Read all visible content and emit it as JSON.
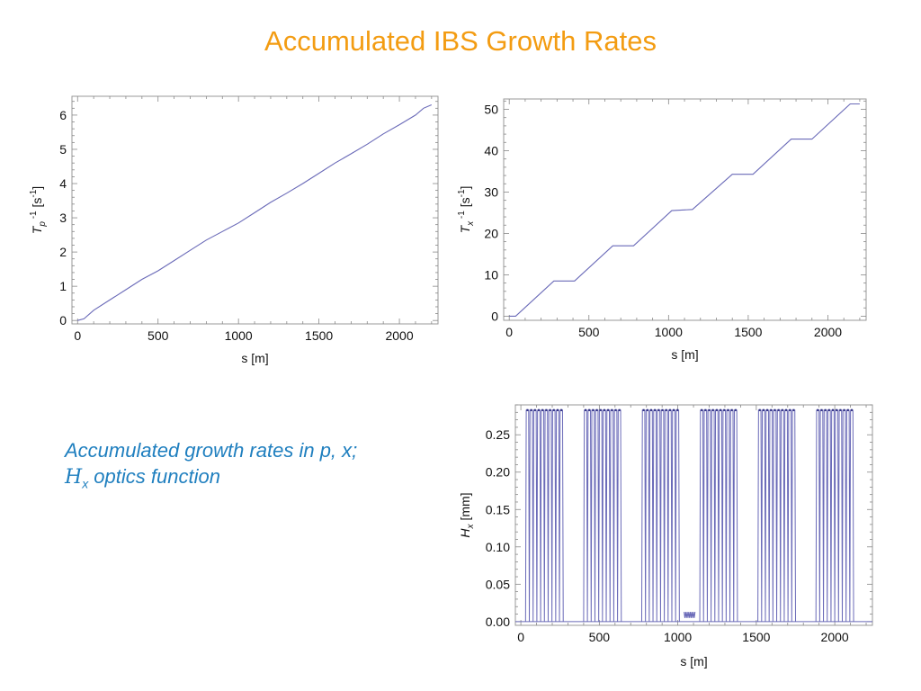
{
  "slide": {
    "title": "Accumulated IBS Growth Rates",
    "caption": {
      "line1": "Accumulated growth rates in p, x;",
      "symbol": "H",
      "symbol_sub": "x",
      "line2": " optics function"
    }
  },
  "colors": {
    "title": "#f39c12",
    "caption": "#1f7fbf",
    "trace": "#6a6ab8",
    "frame": "#999999"
  },
  "chart_data": [
    {
      "type": "line",
      "id": "tp",
      "ylabel": "T_p^-1 [s^-1]",
      "xlabel": "s [m]",
      "xlim": [
        -35,
        2240
      ],
      "ylim": [
        -0.1,
        6.55
      ],
      "xticks": [
        "0",
        "500",
        "1000",
        "1500",
        "2000"
      ],
      "xtick_values": [
        0,
        500,
        1000,
        1500,
        2000
      ],
      "yticks": [
        "0",
        "1",
        "2",
        "3",
        "4",
        "5",
        "6"
      ],
      "ytick_values": [
        0,
        1,
        2,
        3,
        4,
        5,
        6
      ],
      "series": [
        {
          "x": [
            0,
            40,
            100,
            200,
            300,
            400,
            500,
            600,
            700,
            800,
            900,
            1000,
            1100,
            1200,
            1300,
            1400,
            1500,
            1600,
            1700,
            1800,
            1900,
            2000,
            2100,
            2150,
            2200
          ],
          "y": [
            0,
            0.05,
            0.3,
            0.6,
            0.9,
            1.2,
            1.45,
            1.75,
            2.05,
            2.35,
            2.6,
            2.85,
            3.15,
            3.45,
            3.72,
            4.0,
            4.3,
            4.6,
            4.87,
            5.15,
            5.45,
            5.72,
            6.0,
            6.2,
            6.3
          ]
        }
      ]
    },
    {
      "type": "line",
      "id": "tx",
      "ylabel": "T_x^-1 [s^-1]",
      "xlabel": "s [m]",
      "xlim": [
        -35,
        2240
      ],
      "ylim": [
        -1,
        52.5
      ],
      "xticks": [
        "0",
        "500",
        "1000",
        "1500",
        "2000"
      ],
      "xtick_values": [
        0,
        500,
        1000,
        1500,
        2000
      ],
      "yticks": [
        "0",
        "10",
        "20",
        "30",
        "40",
        "50"
      ],
      "ytick_values": [
        0,
        10,
        20,
        30,
        40,
        50
      ],
      "series": [
        {
          "x": [
            0,
            40,
            280,
            410,
            650,
            780,
            1020,
            1150,
            1400,
            1530,
            1770,
            1900,
            2140,
            2200
          ],
          "y": [
            0,
            0,
            8.5,
            8.5,
            17,
            17,
            25.5,
            25.8,
            34.3,
            34.3,
            42.8,
            42.8,
            51.3,
            51.3
          ]
        }
      ]
    },
    {
      "type": "line",
      "id": "hx",
      "ylabel": "H_x [mm]",
      "xlabel": "s [m]",
      "xlim": [
        -35,
        2240
      ],
      "ylim": [
        -0.005,
        0.29
      ],
      "xticks": [
        "0",
        "500",
        "1000",
        "1500",
        "2000"
      ],
      "xtick_values": [
        0,
        500,
        1000,
        1500,
        2000
      ],
      "yticks": [
        "0.00",
        "0.05",
        "0.10",
        "0.15",
        "0.20",
        "0.25"
      ],
      "ytick_values": [
        0,
        0.05,
        0.1,
        0.15,
        0.2,
        0.25
      ],
      "peak": 0.283,
      "blocks": [
        [
          30,
          270
        ],
        [
          400,
          640
        ],
        [
          770,
          1010
        ],
        [
          1140,
          1380
        ],
        [
          1510,
          1750
        ],
        [
          1880,
          2120
        ]
      ],
      "pulses_per_block": 10,
      "small_segment": {
        "x": [
          1040,
          1110
        ],
        "level": 0.013
      }
    }
  ]
}
